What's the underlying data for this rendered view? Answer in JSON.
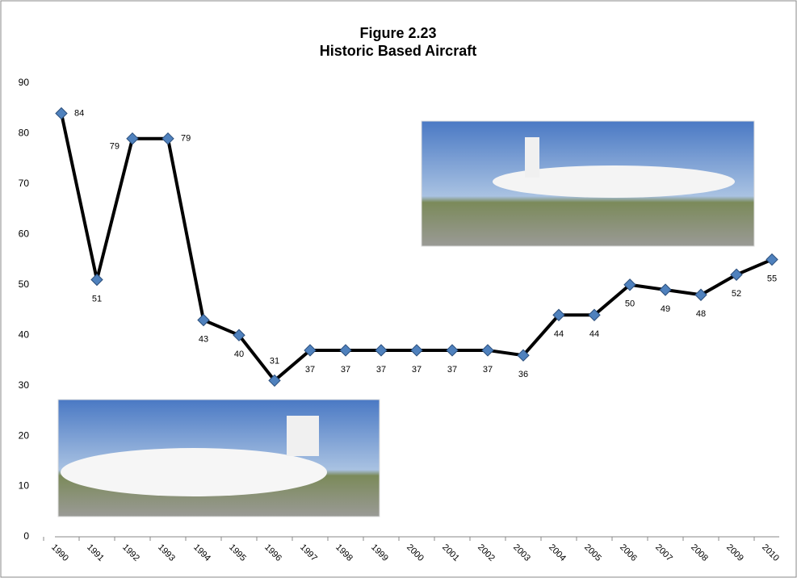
{
  "chart_data": {
    "type": "line",
    "title": "Figure 2.23",
    "subtitle": "Historic Based Aircraft",
    "categories": [
      "1990",
      "1991",
      "1992",
      "1993",
      "1994",
      "1995",
      "1996",
      "1997",
      "1998",
      "1999",
      "2000",
      "2001",
      "2002",
      "2003",
      "2004",
      "2005",
      "2006",
      "2007",
      "2008",
      "2009",
      "2010"
    ],
    "values": [
      84,
      51,
      79,
      79,
      43,
      40,
      31,
      37,
      37,
      37,
      37,
      37,
      37,
      36,
      44,
      44,
      50,
      49,
      48,
      52,
      55
    ],
    "color": "#000000",
    "marker_color": "#4f81bd",
    "ylim": [
      0,
      90
    ],
    "yticks": [
      0,
      10,
      20,
      30,
      40,
      50,
      60,
      70,
      80,
      90
    ],
    "grid": false
  }
}
